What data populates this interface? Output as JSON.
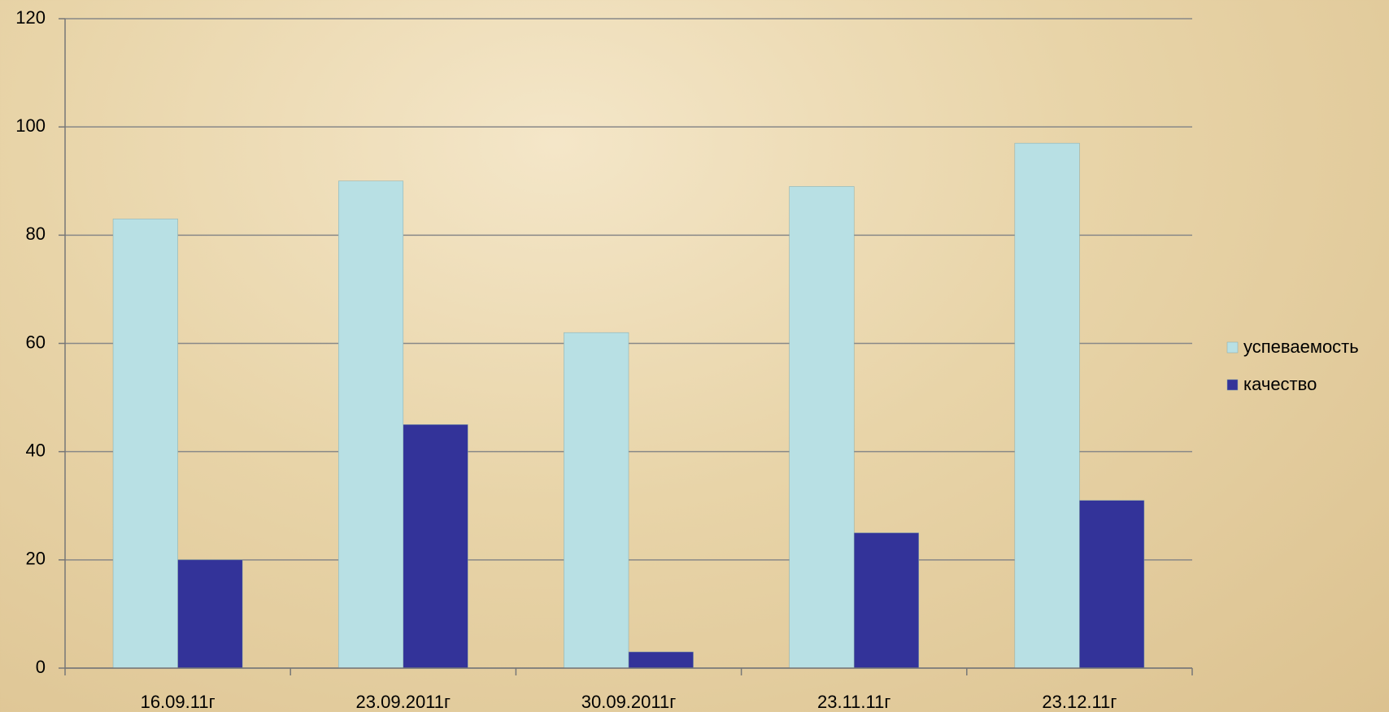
{
  "chart_data": {
    "type": "bar",
    "categories": [
      "16.09.11г",
      "23.09.2011г",
      "30.09.2011г",
      "23.11.11г",
      "23.12.11г"
    ],
    "series": [
      {
        "name": "успеваемость",
        "color": "#b8e0e4",
        "values": [
          83,
          90,
          62,
          89,
          97
        ]
      },
      {
        "name": "качество",
        "color": "#333399",
        "values": [
          20,
          45,
          3,
          25,
          31
        ]
      }
    ],
    "ylim": [
      0,
      120
    ],
    "yticks": [
      0,
      20,
      40,
      60,
      80,
      100,
      120
    ],
    "grid": true,
    "legend": "right"
  }
}
